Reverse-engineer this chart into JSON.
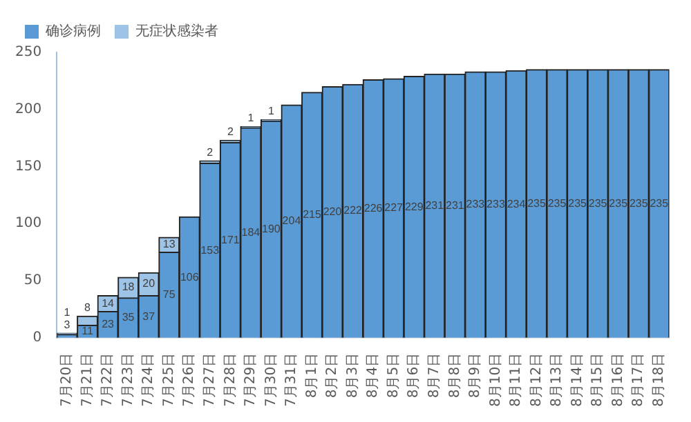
{
  "chart_data": {
    "type": "bar",
    "stacked": true,
    "categories": [
      "7月20日",
      "7月21日",
      "7月22日",
      "7月23日",
      "7月24日",
      "7月25日",
      "7月26日",
      "7月27日",
      "7月28日",
      "7月29日",
      "7月30日",
      "7月31日",
      "8月1日",
      "8月2日",
      "8月3日",
      "8月4日",
      "8月5日",
      "8月6日",
      "8月7日",
      "8月8日",
      "8月9日",
      "8月10日",
      "8月11日",
      "8月12日",
      "8月13日",
      "8月14日",
      "8月15日",
      "8月16日",
      "8月17日",
      "8月18日"
    ],
    "series": [
      {
        "name": "确诊病例",
        "color": "#5b9bd5",
        "values": [
          3,
          11,
          23,
          35,
          37,
          75,
          106,
          153,
          171,
          184,
          190,
          204,
          215,
          220,
          222,
          226,
          227,
          229,
          231,
          231,
          233,
          233,
          234,
          235,
          235,
          235,
          235,
          235,
          235,
          235
        ]
      },
      {
        "name": "无症状感染者",
        "color": "#9dc3e6",
        "values": [
          1,
          8,
          14,
          18,
          20,
          13,
          null,
          2,
          2,
          1,
          1,
          null,
          null,
          null,
          null,
          null,
          null,
          null,
          null,
          null,
          null,
          null,
          null,
          null,
          null,
          null,
          null,
          null,
          null,
          null
        ]
      }
    ],
    "ylim": [
      0,
      250
    ],
    "yticks": [
      0,
      50,
      100,
      150,
      200,
      250
    ],
    "grid": false,
    "legend": "top left",
    "data_labels": true
  }
}
